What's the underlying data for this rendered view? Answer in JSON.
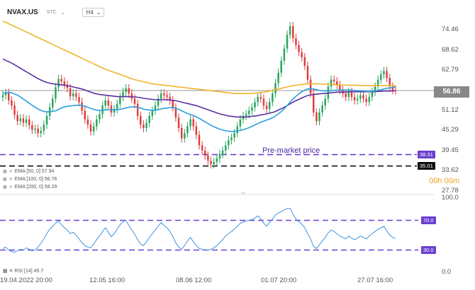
{
  "header": {
    "symbol": "NVAX.US",
    "sub": "STC",
    "timeframe": "H4"
  },
  "colors": {
    "up": "#26a65b",
    "down": "#e03b3b",
    "ema50": "#2aa0e0",
    "ema100": "#5b2fa0",
    "ema200": "#f0b429",
    "rsi": "#3b93e0",
    "level": "#6a3fd0"
  },
  "indicators": {
    "ema50": "EMA [50, 0] 57.94",
    "ema100": "EMA [100, 0] 56.76",
    "ema200": "EMA [200, 0] 58.29",
    "rsi": "RSI [14] 45.7"
  },
  "annotations": {
    "premarket": "Pre-market price",
    "countdown": "00h 00m",
    "current_price": "56.86"
  },
  "chart_data": {
    "type": "candlestick",
    "y_ticks": [
      "74.46",
      "68.62",
      "62.79",
      "56.86",
      "51.12",
      "45.29",
      "39.45",
      "33.62",
      "27.78"
    ],
    "x_labels": [
      "19.04.2022 20:00",
      "12.05 16:00",
      "08.06 12:00",
      "01.07 20:00",
      "27.07 16:00"
    ],
    "levels": [
      {
        "value": 38.31,
        "label": "38.31",
        "color": "#6a3fd0"
      },
      {
        "value": 35.01,
        "label": "35.01",
        "color": "#111111"
      }
    ],
    "close": [
      55.5,
      56.2,
      54.0,
      52.5,
      49.8,
      48.0,
      48.8,
      47.5,
      48.5,
      46.8,
      45.5,
      45.8,
      44.5,
      45.2,
      47.0,
      49.5,
      52.0,
      54.5,
      57.8,
      60.2,
      59.5,
      58.5,
      57.5,
      55.2,
      56.0,
      55.0,
      53.5,
      51.0,
      48.5,
      47.0,
      45.0,
      46.5,
      48.5,
      50.0,
      52.5,
      54.0,
      52.5,
      50.5,
      51.5,
      53.0,
      55.0,
      56.5,
      57.5,
      56.0,
      54.5,
      53.0,
      49.5,
      47.0,
      46.0,
      47.5,
      49.5,
      51.0,
      52.5,
      54.5,
      56.0,
      55.5,
      55.0,
      54.0,
      52.0,
      49.0,
      46.0,
      43.0,
      44.5,
      46.5,
      48.5,
      46.5,
      44.0,
      41.0,
      39.5,
      38.0,
      36.5,
      35.5,
      36.2,
      37.2,
      38.5,
      39.5,
      41.0,
      42.5,
      43.2,
      44.5,
      46.5,
      48.5,
      49.5,
      50.0,
      51.0,
      52.0,
      53.5,
      55.0,
      54.5,
      52.5,
      51.5,
      53.5,
      56.0,
      59.0,
      62.0,
      65.5,
      69.0,
      73.0,
      75.5,
      72.0,
      70.0,
      68.0,
      66.5,
      64.0,
      60.0,
      56.0,
      50.5,
      48.0,
      50.5,
      52.5,
      54.5,
      58.0,
      60.0,
      59.5,
      58.5,
      57.0,
      56.0,
      55.0,
      56.5,
      55.0,
      54.0,
      54.5,
      55.5,
      54.5,
      53.5,
      55.0,
      56.5,
      58.0,
      60.0,
      61.5,
      62.5,
      60.5,
      58.0,
      57.0,
      56.86
    ],
    "ema50": [
      56.0,
      56.2,
      56.3,
      56.2,
      55.9,
      55.5,
      55.0,
      54.4,
      53.8,
      53.2,
      52.6,
      52.0,
      51.5,
      51.1,
      50.8,
      50.7,
      50.7,
      50.8,
      51.0,
      51.4,
      51.8,
      52.1,
      52.3,
      52.4,
      52.5,
      52.6,
      52.6,
      52.5,
      52.3,
      52.0,
      51.7,
      51.4,
      51.2,
      51.1,
      51.1,
      51.2,
      51.3,
      51.3,
      51.3,
      51.3,
      51.4,
      51.6,
      51.8,
      52.0,
      52.1,
      52.1,
      52.0,
      51.8,
      51.5,
      51.3,
      51.2,
      51.1,
      51.2,
      51.3,
      51.5,
      51.7,
      51.8,
      51.9,
      51.9,
      51.7,
      51.4,
      51.0,
      50.6,
      50.2,
      49.9,
      49.6,
      49.2,
      48.8,
      48.3,
      47.8,
      47.3,
      46.8,
      46.4,
      46.0,
      45.7,
      45.4,
      45.2,
      45.1,
      45.0,
      45.0,
      45.1,
      45.3,
      45.5,
      45.8,
      46.1,
      46.5,
      46.9,
      47.3,
      47.7,
      48.0,
      48.3,
      48.6,
      49.0,
      49.5,
      50.1,
      50.8,
      51.6,
      52.5,
      53.5,
      54.4,
      55.2,
      55.9,
      56.5,
      57.0,
      57.3,
      57.4,
      57.3,
      57.1,
      56.9,
      56.8,
      56.7,
      56.7,
      56.8,
      56.9,
      57.0,
      57.0,
      57.0,
      57.0,
      57.0,
      57.0,
      56.9,
      56.8,
      56.8,
      56.7,
      56.6,
      56.6,
      56.6,
      56.7,
      56.9,
      57.1,
      57.3,
      57.5,
      57.6,
      57.7,
      57.94
    ],
    "ema100": [
      66.0,
      65.6,
      65.2,
      64.8,
      64.3,
      63.8,
      63.3,
      62.8,
      62.3,
      61.8,
      61.3,
      60.8,
      60.3,
      59.9,
      59.5,
      59.2,
      59.0,
      58.8,
      58.7,
      58.6,
      58.5,
      58.4,
      58.3,
      58.1,
      57.9,
      57.7,
      57.5,
      57.3,
      57.0,
      56.7,
      56.4,
      56.1,
      55.9,
      55.7,
      55.6,
      55.5,
      55.4,
      55.3,
      55.2,
      55.1,
      55.1,
      55.1,
      55.1,
      55.1,
      55.0,
      55.0,
      54.9,
      54.8,
      54.6,
      54.5,
      54.4,
      54.3,
      54.2,
      54.2,
      54.2,
      54.2,
      54.2,
      54.1,
      54.0,
      53.9,
      53.7,
      53.5,
      53.3,
      53.1,
      52.9,
      52.7,
      52.5,
      52.2,
      51.9,
      51.6,
      51.3,
      51.0,
      50.7,
      50.4,
      50.1,
      49.9,
      49.7,
      49.5,
      49.4,
      49.3,
      49.2,
      49.2,
      49.2,
      49.2,
      49.3,
      49.4,
      49.5,
      49.6,
      49.8,
      49.9,
      50.1,
      50.3,
      50.5,
      50.8,
      51.2,
      51.6,
      52.0,
      52.5,
      53.0,
      53.5,
      53.9,
      54.3,
      54.7,
      55.1,
      55.4,
      55.6,
      55.7,
      55.8,
      55.9,
      56.0,
      56.0,
      56.1,
      56.2,
      56.3,
      56.4,
      56.4,
      56.4,
      56.4,
      56.5,
      56.5,
      56.5,
      56.5,
      56.5,
      56.5,
      56.5,
      56.5,
      56.5,
      56.5,
      56.6,
      56.6,
      56.7,
      56.7,
      56.7,
      56.8,
      56.76
    ],
    "ema200": [
      77.0,
      76.6,
      76.2,
      75.8,
      75.4,
      75.0,
      74.6,
      74.2,
      73.8,
      73.4,
      73.0,
      72.6,
      72.2,
      71.8,
      71.4,
      71.0,
      70.6,
      70.2,
      69.8,
      69.4,
      69.0,
      68.6,
      68.2,
      67.8,
      67.4,
      67.0,
      66.6,
      66.2,
      65.8,
      65.4,
      65.0,
      64.6,
      64.2,
      63.8,
      63.4,
      63.0,
      62.7,
      62.4,
      62.1,
      61.8,
      61.5,
      61.2,
      60.9,
      60.6,
      60.3,
      60.0,
      59.8,
      59.6,
      59.4,
      59.2,
      59.0,
      58.8,
      58.7,
      58.6,
      58.5,
      58.4,
      58.3,
      58.2,
      58.1,
      58.0,
      57.9,
      57.8,
      57.7,
      57.6,
      57.5,
      57.4,
      57.3,
      57.2,
      57.1,
      57.0,
      56.9,
      56.8,
      56.7,
      56.6,
      56.5,
      56.4,
      56.3,
      56.2,
      56.1,
      56.0,
      56.0,
      56.0,
      56.0,
      56.0,
      56.0,
      56.0,
      56.1,
      56.2,
      56.3,
      56.4,
      56.5,
      56.7,
      56.9,
      57.1,
      57.3,
      57.5,
      57.7,
      57.9,
      58.1,
      58.3,
      58.4,
      58.5,
      58.6,
      58.7,
      58.8,
      58.8,
      58.8,
      58.8,
      58.8,
      58.7,
      58.7,
      58.7,
      58.6,
      58.6,
      58.5,
      58.5,
      58.5,
      58.4,
      58.4,
      58.4,
      58.4,
      58.4,
      58.3,
      58.3,
      58.3,
      58.3,
      58.3,
      58.3,
      58.3,
      58.3,
      58.3,
      58.3,
      58.3,
      58.3,
      58.29
    ],
    "rsi_levels": [
      70.0,
      30.0
    ],
    "rsi_ticks": [
      "100.0",
      "70.0",
      "30.0",
      "0.0"
    ],
    "rsi": [
      32,
      34,
      30,
      28,
      27,
      29,
      31,
      30,
      33,
      31,
      29,
      30,
      34,
      39,
      45,
      52,
      58,
      62,
      66,
      69,
      64,
      60,
      57,
      52,
      54,
      50,
      45,
      40,
      36,
      34,
      33,
      38,
      44,
      49,
      55,
      60,
      54,
      48,
      52,
      58,
      64,
      68,
      70,
      63,
      57,
      51,
      44,
      38,
      36,
      41,
      47,
      52,
      57,
      62,
      67,
      63,
      60,
      55,
      48,
      40,
      34,
      31,
      36,
      42,
      47,
      41,
      36,
      32,
      31,
      30,
      30,
      31,
      33,
      36,
      40,
      44,
      49,
      52,
      55,
      58,
      62,
      66,
      68,
      69,
      70,
      71,
      73,
      76,
      72,
      66,
      62,
      67,
      72,
      77,
      80,
      82,
      84,
      86,
      86,
      78,
      72,
      68,
      65,
      60,
      52,
      45,
      35,
      32,
      37,
      42,
      47,
      53,
      57,
      55,
      52,
      49,
      47,
      45,
      49,
      46,
      44,
      46,
      49,
      47,
      45,
      49,
      52,
      55,
      58,
      60,
      62,
      56,
      50,
      47,
      45.7
    ]
  }
}
